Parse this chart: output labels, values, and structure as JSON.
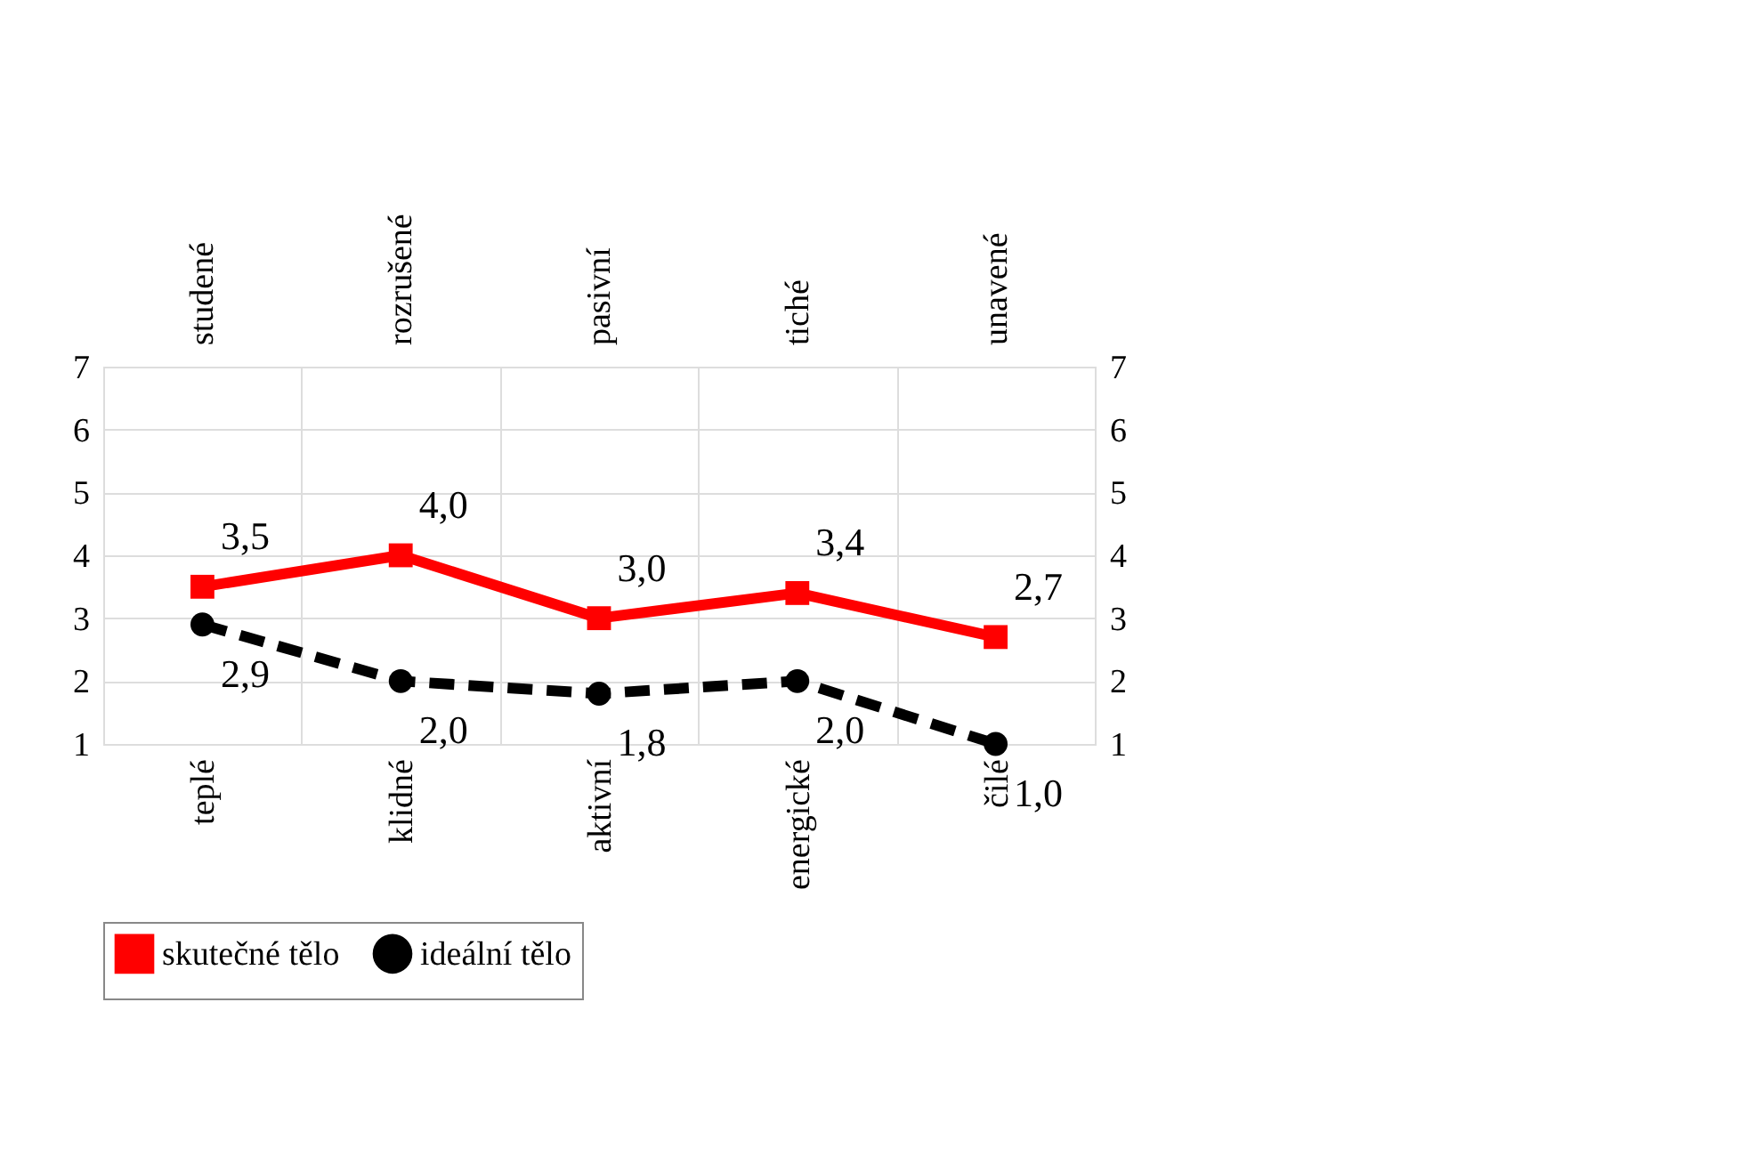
{
  "chart_data": {
    "type": "line",
    "categories": [
      "teplé",
      "klidné",
      "aktivní",
      "energické",
      "čilé"
    ],
    "annotations": [
      "studené",
      "rozrušené",
      "pasivní",
      "tiché",
      "unavené"
    ],
    "series": [
      {
        "name": "skutečné tělo",
        "color": "#ff0000",
        "values": [
          3.5,
          4.0,
          3.0,
          3.4,
          2.7
        ],
        "value_labels": [
          "3,5",
          "4,0",
          "3,0",
          "3,4",
          "2,7"
        ],
        "marker": "square",
        "line_style": "solid"
      },
      {
        "name": "ideální tělo",
        "color": "#000000",
        "values": [
          2.9,
          2.0,
          1.8,
          2.0,
          1.0
        ],
        "value_labels": [
          "2,9",
          "2,0",
          "1,8",
          "2,0",
          "1,0"
        ],
        "marker": "circle",
        "line_style": "dashed"
      }
    ],
    "ylim": [
      1,
      7
    ],
    "yticks": [
      1,
      2,
      3,
      4,
      5,
      6,
      7
    ],
    "y2lim": [
      1,
      7
    ],
    "y2ticks": [
      1,
      2,
      3,
      4,
      5,
      6,
      7
    ],
    "grid": true,
    "legend": "bottom"
  }
}
